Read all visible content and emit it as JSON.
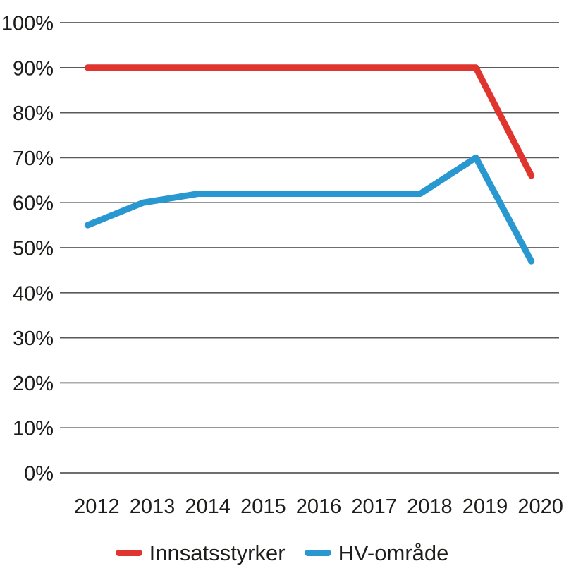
{
  "chart_data": {
    "type": "line",
    "title": "",
    "xlabel": "",
    "ylabel": "",
    "categories": [
      "2012",
      "2013",
      "2014",
      "2015",
      "2016",
      "2017",
      "2018",
      "2019",
      "2020"
    ],
    "series": [
      {
        "name": "Innsatsstyrker",
        "color": "#e0352e",
        "values": [
          90,
          90,
          90,
          90,
          90,
          90,
          90,
          90,
          66
        ]
      },
      {
        "name": "HV-område",
        "color": "#2997d0",
        "values": [
          55,
          60,
          62,
          62,
          62,
          62,
          62,
          70,
          47
        ]
      }
    ],
    "ylim": [
      0,
      100
    ],
    "yticks": [
      0,
      10,
      20,
      30,
      40,
      50,
      60,
      70,
      80,
      90,
      100
    ],
    "ytick_labels": [
      "0%",
      "10%",
      "20%",
      "30%",
      "40%",
      "50%",
      "60%",
      "70%",
      "80%",
      "90%",
      "100%"
    ],
    "grid": true,
    "legend_position": "bottom"
  },
  "colors": {
    "background": "#ffffff",
    "gridline": "#595959",
    "text": "#1d1d1b",
    "series_red": "#e0352e",
    "series_blue": "#2997d0"
  }
}
